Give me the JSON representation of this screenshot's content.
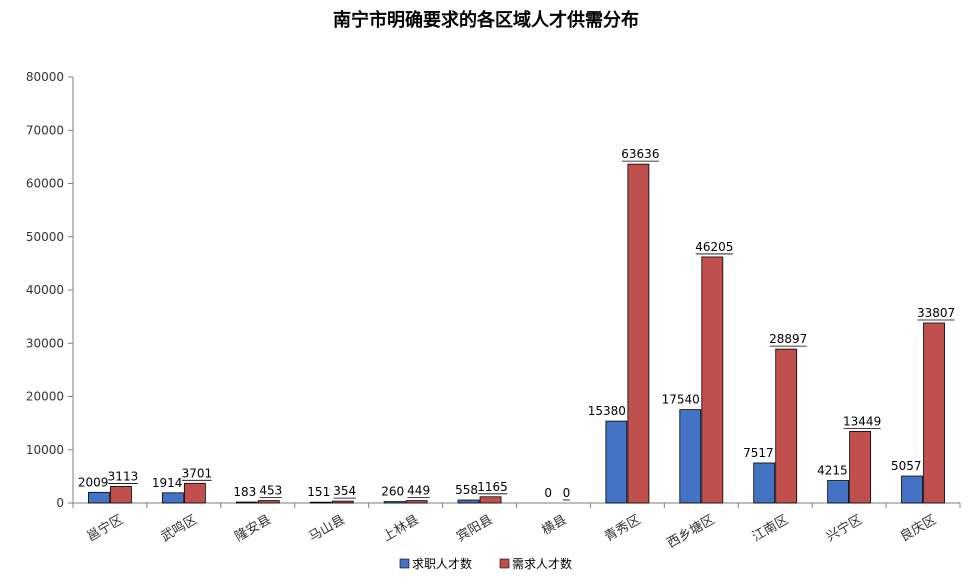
{
  "chart_data": {
    "type": "bar",
    "title": "南宁市明确要求的各区域人才供需分布",
    "xlabel": "",
    "ylabel": "",
    "ylim": [
      0,
      80000
    ],
    "yticks": [
      0,
      10000,
      20000,
      30000,
      40000,
      50000,
      60000,
      70000,
      80000
    ],
    "categories": [
      "邕宁区",
      "武鸣区",
      "隆安县",
      "马山县",
      "上林县",
      "宾阳县",
      "横县",
      "青秀区",
      "西乡塘区",
      "江南区",
      "兴宁区",
      "良庆区"
    ],
    "series": [
      {
        "name": "求职人才数",
        "color": "#4472c4",
        "values": [
          2009,
          1914,
          183,
          151,
          260,
          558,
          0,
          15380,
          17540,
          7517,
          4215,
          5057
        ]
      },
      {
        "name": "需求人才数",
        "color": "#c0504d",
        "values": [
          3113,
          3701,
          453,
          354,
          449,
          1165,
          0,
          63636,
          46205,
          28897,
          13449,
          33807
        ]
      }
    ],
    "legend": "bottom-center",
    "grid": false
  }
}
